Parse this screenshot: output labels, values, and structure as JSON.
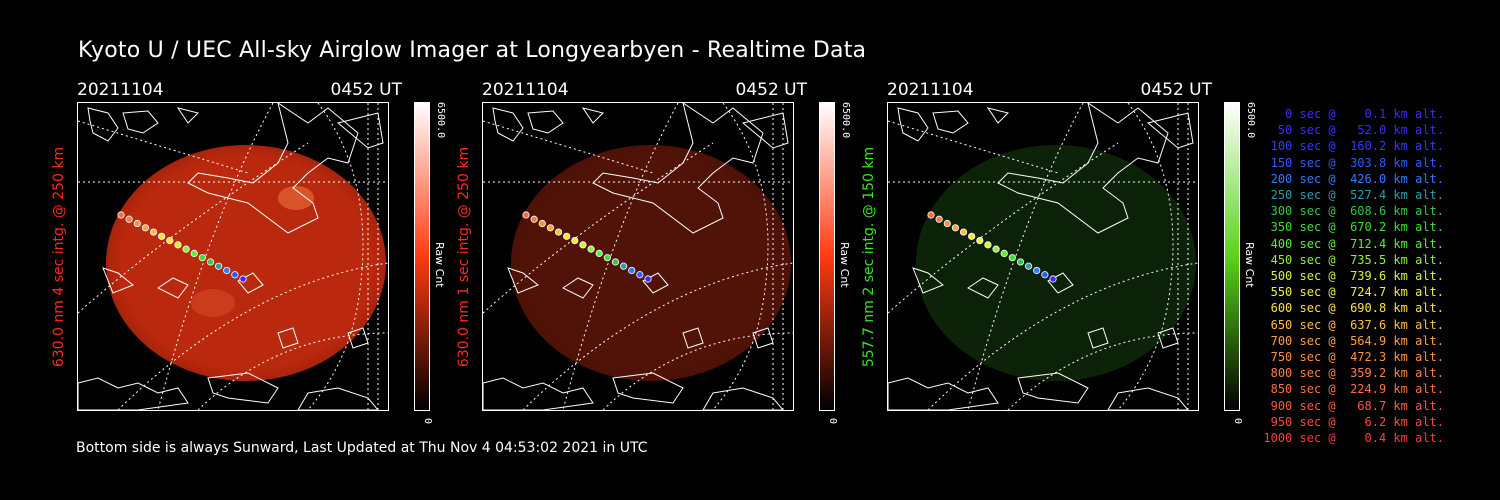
{
  "title": "Kyoto U / UEC All-sky Airglow Imager at Longyearbyen - Realtime Data",
  "footer": "Bottom side is always Sunward, Last Updated at Thu Nov  4 04:53:02 2021 in UTC",
  "panels": [
    {
      "date": "20211104",
      "time": "0452 UT",
      "ylabel": "630.0 nm 4 sec intg. @ 250 km",
      "label_color": "#ff2a1a",
      "cbar_max": "6500.0",
      "cbar_min": "0",
      "cbar_unit": "Raw Cnt",
      "cbar_color": "#ff3a10",
      "image_color": "#c42a0e",
      "image_opacity": "0.95"
    },
    {
      "date": "20211104",
      "time": "0452 UT",
      "ylabel": "630.0 nm 1 sec intg. @ 250 km",
      "label_color": "#ff2a1a",
      "cbar_max": "6500.0",
      "cbar_min": "0",
      "cbar_unit": "Raw Cnt",
      "cbar_color": "#ff3a10",
      "image_color": "#5a1408",
      "image_opacity": "0.9"
    },
    {
      "date": "20211104",
      "time": "0452 UT",
      "ylabel": "557.7 nm 2 sec intg. @ 150 km",
      "label_color": "#37e81e",
      "cbar_max": "6500.0",
      "cbar_min": "0",
      "cbar_unit": "Raw Cnt",
      "cbar_color": "#5ad21a",
      "image_color": "#0e2a0a",
      "image_opacity": "0.8"
    }
  ],
  "legend": [
    {
      "text": "   0 sec @    0.1 km alt.",
      "color": "#3b2bff"
    },
    {
      "text": "  50 sec @   52.0 km alt.",
      "color": "#3b2bff"
    },
    {
      "text": " 100 sec @  160.2 km alt.",
      "color": "#2f3cff"
    },
    {
      "text": " 150 sec @  303.8 km alt.",
      "color": "#2f5cff"
    },
    {
      "text": " 200 sec @  426.0 km alt.",
      "color": "#2f7cff"
    },
    {
      "text": " 250 sec @  527.4 km alt.",
      "color": "#2f9caa"
    },
    {
      "text": " 300 sec @  608.6 km alt.",
      "color": "#2fc84a"
    },
    {
      "text": " 350 sec @  670.2 km alt.",
      "color": "#3be030"
    },
    {
      "text": " 400 sec @  712.4 km alt.",
      "color": "#5af03a"
    },
    {
      "text": " 450 sec @  735.5 km alt.",
      "color": "#8ff03a"
    },
    {
      "text": " 500 sec @  739.6 km alt.",
      "color": "#d8f03a"
    },
    {
      "text": " 550 sec @  724.7 km alt.",
      "color": "#f0f03a"
    },
    {
      "text": " 600 sec @  690.8 km alt.",
      "color": "#ffe040"
    },
    {
      "text": " 650 sec @  637.6 km alt.",
      "color": "#ffc040"
    },
    {
      "text": " 700 sec @  564.9 km alt.",
      "color": "#ffa040"
    },
    {
      "text": " 750 sec @  472.3 km alt.",
      "color": "#ff9040"
    },
    {
      "text": " 800 sec @  359.2 km alt.",
      "color": "#ff8040"
    },
    {
      "text": " 850 sec @  224.9 km alt.",
      "color": "#ff7040"
    },
    {
      "text": " 900 sec @   68.7 km alt.",
      "color": "#ff5a3a"
    },
    {
      "text": " 950 sec @    6.2 km alt.",
      "color": "#ff4a3a"
    },
    {
      "text": "1000 sec @    0.4 km alt.",
      "color": "#ff3a3a"
    }
  ],
  "trajectory_colors": [
    "#ff6a3a",
    "#ff7a40",
    "#ff9040",
    "#ffa040",
    "#ffc040",
    "#ffe040",
    "#f0f03a",
    "#d8f03a",
    "#8ff03a",
    "#5af03a",
    "#3be030",
    "#2fc84a",
    "#2f9caa",
    "#2f7cff",
    "#2f5cff",
    "#3b2bff"
  ]
}
